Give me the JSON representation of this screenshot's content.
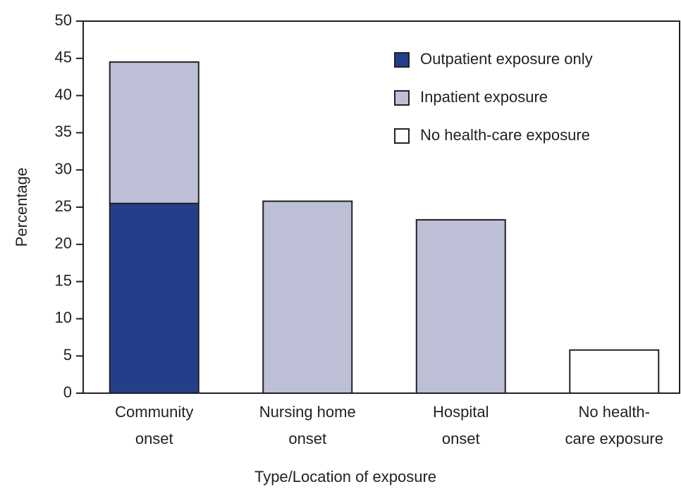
{
  "chart_data": {
    "type": "stacked-bar",
    "x_label": "Type/Location of exposure",
    "y_label": "Percentage",
    "categories": [
      [
        "Community",
        "onset"
      ],
      [
        "Nursing home",
        "onset"
      ],
      [
        "Hospital",
        "onset"
      ],
      [
        "No health-",
        "care exposure"
      ]
    ],
    "series": [
      {
        "name": "Outpatient exposure only",
        "color": "#243f8a",
        "values": [
          25.5,
          0,
          0,
          0
        ]
      },
      {
        "name": "Inpatient exposure",
        "color": "#bcbfd6",
        "values": [
          19,
          25.8,
          23.3,
          0
        ]
      },
      {
        "name": "No health-care exposure",
        "color": "#ffffff",
        "values": [
          0,
          0,
          0,
          5.8
        ]
      }
    ],
    "ylim": [
      0,
      50
    ],
    "yticks": [
      0,
      5,
      10,
      15,
      20,
      25,
      30,
      35,
      40,
      45,
      50
    ],
    "legend": "top-right"
  }
}
